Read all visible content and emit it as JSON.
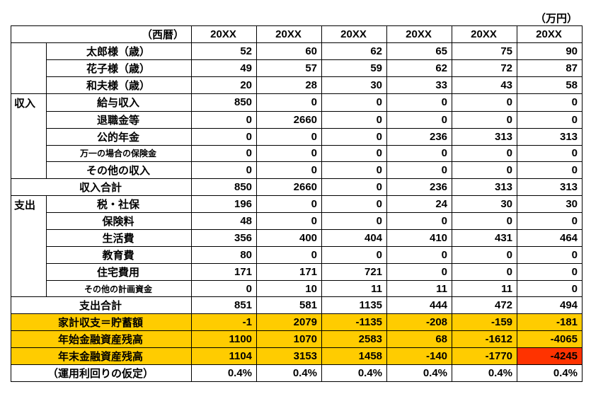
{
  "unit_label": "（万円）",
  "colors": {
    "highlight_yellow": "#ffcc00",
    "highlight_red": "#ff3300",
    "border": "#000000",
    "background": "#ffffff"
  },
  "header": {
    "year_label": "（西暦）",
    "years": [
      "20XX",
      "20XX",
      "20XX",
      "20XX",
      "20XX",
      "20XX"
    ]
  },
  "age_rows": [
    {
      "label": "太郎様（歳）",
      "values": [
        "52",
        "60",
        "62",
        "65",
        "75",
        "90"
      ]
    },
    {
      "label": "花子様（歳）",
      "values": [
        "49",
        "57",
        "59",
        "62",
        "72",
        "87"
      ]
    },
    {
      "label": "和夫様（歳）",
      "values": [
        "20",
        "28",
        "30",
        "33",
        "43",
        "58"
      ]
    }
  ],
  "sections": {
    "income": {
      "label": "収入",
      "items": [
        {
          "label": "給与収入",
          "small": false,
          "values": [
            "850",
            "0",
            "0",
            "0",
            "0",
            "0"
          ]
        },
        {
          "label": "退職金等",
          "small": false,
          "values": [
            "0",
            "2660",
            "0",
            "0",
            "0",
            "0"
          ]
        },
        {
          "label": "公的年金",
          "small": false,
          "values": [
            "0",
            "0",
            "0",
            "236",
            "313",
            "313"
          ]
        },
        {
          "label": "万一の場合の保険金",
          "small": true,
          "values": [
            "0",
            "0",
            "0",
            "0",
            "0",
            "0"
          ]
        },
        {
          "label": "その他の収入",
          "small": false,
          "values": [
            "0",
            "0",
            "0",
            "0",
            "0",
            "0"
          ]
        }
      ],
      "total": {
        "label": "収入合計",
        "values": [
          "850",
          "2660",
          "0",
          "236",
          "313",
          "313"
        ]
      }
    },
    "expense": {
      "label": "支出",
      "items": [
        {
          "label": "税・社保",
          "small": false,
          "values": [
            "196",
            "0",
            "0",
            "24",
            "30",
            "30"
          ]
        },
        {
          "label": "保険料",
          "small": false,
          "values": [
            "48",
            "0",
            "0",
            "0",
            "0",
            "0"
          ]
        },
        {
          "label": "生活費",
          "small": false,
          "values": [
            "356",
            "400",
            "404",
            "410",
            "431",
            "464"
          ]
        },
        {
          "label": "教育費",
          "small": false,
          "values": [
            "80",
            "0",
            "0",
            "0",
            "0",
            "0"
          ]
        },
        {
          "label": "住宅費用",
          "small": false,
          "values": [
            "171",
            "171",
            "721",
            "0",
            "0",
            "0"
          ]
        },
        {
          "label": "その他の計画資金",
          "small": true,
          "values": [
            "0",
            "10",
            "11",
            "11",
            "11",
            "0"
          ]
        }
      ],
      "total": {
        "label": "支出合計",
        "values": [
          "851",
          "581",
          "1135",
          "444",
          "472",
          "494"
        ]
      }
    }
  },
  "summary": [
    {
      "label": "家計収支＝貯蓄額",
      "label_color": "#ffcc00",
      "cells": [
        {
          "v": "-1",
          "c": "#ffcc00"
        },
        {
          "v": "2079",
          "c": "#ffcc00"
        },
        {
          "v": "-1135",
          "c": "#ffcc00"
        },
        {
          "v": "-208",
          "c": "#ffcc00"
        },
        {
          "v": "-159",
          "c": "#ffcc00"
        },
        {
          "v": "-181",
          "c": "#ffcc00"
        }
      ]
    },
    {
      "label": "年始金融資産残高",
      "label_color": "#ffcc00",
      "cells": [
        {
          "v": "1100",
          "c": "#ffcc00"
        },
        {
          "v": "1070",
          "c": "#ffcc00"
        },
        {
          "v": "2583",
          "c": "#ffcc00"
        },
        {
          "v": "68",
          "c": "#ffcc00"
        },
        {
          "v": "-1612",
          "c": "#ffcc00"
        },
        {
          "v": "-4065",
          "c": "#ffcc00"
        }
      ]
    },
    {
      "label": "年末金融資産残高",
      "label_color": "#ffcc00",
      "cells": [
        {
          "v": "1104",
          "c": "#ffcc00"
        },
        {
          "v": "3153",
          "c": "#ffcc00"
        },
        {
          "v": "1458",
          "c": "#ffcc00"
        },
        {
          "v": "-140",
          "c": "#ffcc00"
        },
        {
          "v": "-1770",
          "c": "#ffcc00"
        },
        {
          "v": "-4245",
          "c": "#ff3300"
        }
      ]
    }
  ],
  "assumption": {
    "label": "（運用利回りの仮定）",
    "values": [
      "0.4%",
      "0.4%",
      "0.4%",
      "0.4%",
      "0.4%",
      "0.4%"
    ]
  }
}
